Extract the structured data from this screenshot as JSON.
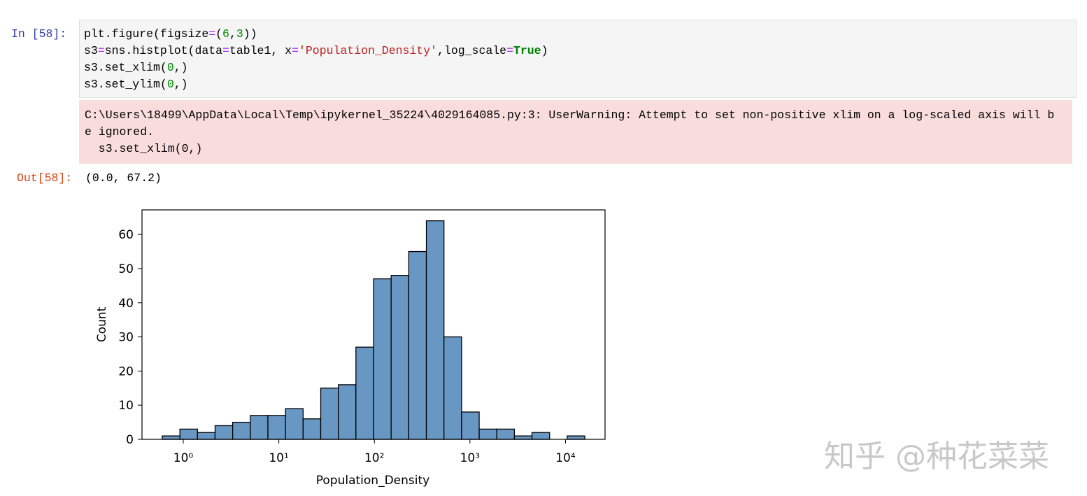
{
  "cell": {
    "in_prompt": "In [58]:",
    "code": [
      [
        {
          "text": "plt.figure(figsize",
          "kind": "n"
        },
        {
          "text": "=",
          "kind": "o"
        },
        {
          "text": "(",
          "kind": "n"
        },
        {
          "text": "6",
          "kind": "m"
        },
        {
          "text": ",",
          "kind": "n"
        },
        {
          "text": "3",
          "kind": "m"
        },
        {
          "text": "))",
          "kind": "n"
        }
      ],
      [
        {
          "text": "s3",
          "kind": "n"
        },
        {
          "text": "=",
          "kind": "o"
        },
        {
          "text": "sns.histplot(data",
          "kind": "n"
        },
        {
          "text": "=",
          "kind": "o"
        },
        {
          "text": "table1, x",
          "kind": "n"
        },
        {
          "text": "=",
          "kind": "o"
        },
        {
          "text": "'Population_Density'",
          "kind": "s"
        },
        {
          "text": ",log_scale",
          "kind": "n"
        },
        {
          "text": "=",
          "kind": "o"
        },
        {
          "text": "True",
          "kind": "k"
        },
        {
          "text": ")",
          "kind": "n"
        }
      ],
      [
        {
          "text": "s3.set_xlim(",
          "kind": "n"
        },
        {
          "text": "0",
          "kind": "m"
        },
        {
          "text": ",)",
          "kind": "n"
        }
      ],
      [
        {
          "text": "s3.set_ylim(",
          "kind": "n"
        },
        {
          "text": "0",
          "kind": "m"
        },
        {
          "text": ",)",
          "kind": "n"
        }
      ]
    ],
    "stderr": [
      "C:\\Users\\18499\\AppData\\Local\\Temp\\ipykernel_35224\\4029164085.py:3: UserWarning: Attempt to set non-positive xlim on a log-scaled axis will b",
      "e ignored.",
      "  s3.set_xlim(0,)"
    ],
    "out_prompt": "Out[58]:",
    "output": "(0.0, 67.2)"
  },
  "chart_data": {
    "type": "histogram",
    "xlabel": "Population_Density",
    "ylabel": "Count",
    "bins": [
      0.603,
      0.922,
      1.409,
      2.153,
      3.291,
      5.03,
      7.69,
      11.75,
      17.96,
      27.45,
      41.96,
      64.1,
      98.0,
      149.8,
      229.0,
      350.1,
      535,
      818,
      1250,
      1911,
      2920,
      4463,
      6822,
      10425,
      15936
    ],
    "values": [
      1,
      3,
      2,
      4,
      5,
      7,
      7,
      9,
      6,
      15,
      16,
      27,
      47,
      48,
      55,
      64,
      30,
      8,
      3,
      3,
      1,
      2,
      0,
      1
    ],
    "color": "#6897c4",
    "edgecolor": "#000000",
    "xscale": "log",
    "xlim": [
      0.37,
      25950
    ],
    "xticks": [
      {
        "value": 1,
        "label": "10⁰"
      },
      {
        "value": 10,
        "label": "10¹"
      },
      {
        "value": 100,
        "label": "10²"
      },
      {
        "value": 1000,
        "label": "10³"
      },
      {
        "value": 10000,
        "label": "10⁴"
      }
    ],
    "ylim": [
      0,
      67.2
    ],
    "yticks": [
      0,
      10,
      20,
      30,
      40,
      50,
      60
    ],
    "grid": false
  },
  "watermark": "知乎 @种花菜菜"
}
